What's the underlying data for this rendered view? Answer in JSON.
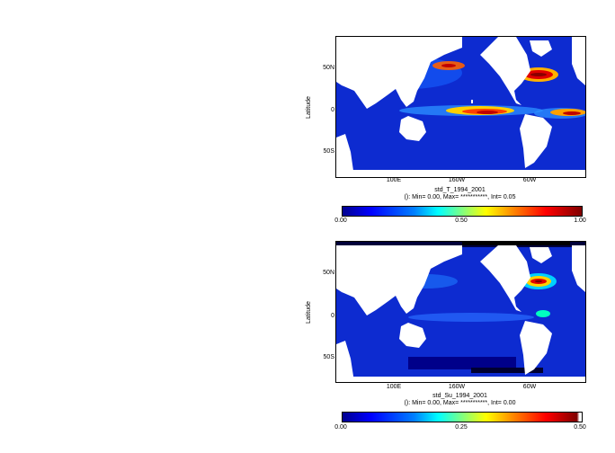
{
  "colors": {
    "ocean_low": "#0018c8",
    "ocean_mid": "#0050ff",
    "land": "#ffffff",
    "hot": "#c80000"
  },
  "chart_data": [
    {
      "type": "heatmap",
      "title": "std_T_1994_2001",
      "subtitle": "(): Min= 0.00, Max= ***********, Int= 0.05",
      "ylabel": "Latitude",
      "xtick_labels": [
        "100E",
        "160W",
        "60W"
      ],
      "ytick_labels": [
        "50N",
        "0",
        "50S"
      ],
      "colorbar": {
        "min": 0.0,
        "max": 1.0,
        "tick_labels": [
          "0.00",
          "0.50",
          "1.00"
        ]
      }
    },
    {
      "type": "heatmap",
      "title": "std_Su_1994_2001",
      "subtitle": "(): Min= 0.00, Max= ***********, Int= 0.00",
      "ylabel": "Latitude",
      "xtick_labels": [
        "100E",
        "160W",
        "60W"
      ],
      "ytick_labels": [
        "50N",
        "0",
        "50S"
      ],
      "colorbar": {
        "min": 0.0,
        "max": 0.5,
        "tick_labels": [
          "0.00",
          "0.25",
          "0.50"
        ]
      }
    }
  ]
}
